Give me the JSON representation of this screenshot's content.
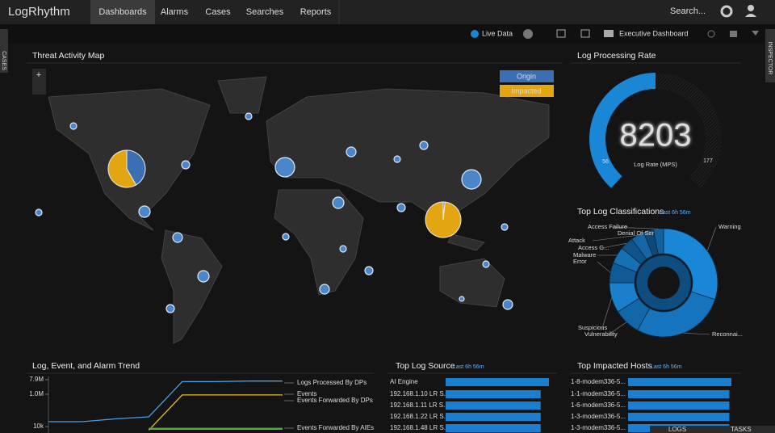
{
  "nav": {
    "brand": "LogRhythm",
    "tabs": [
      "Dashboards",
      "Alarms",
      "Cases",
      "Searches",
      "Reports"
    ],
    "search": "Search..."
  },
  "toolbar": {
    "live": "Live Data",
    "dashboard": "Executive Dashboard"
  },
  "sidebars": {
    "left": "CASES",
    "right": "INSPECTOR"
  },
  "threat_map": {
    "title": "Threat Activity Map",
    "zoom": "+",
    "legend": [
      "Origin",
      "Impacted"
    ]
  },
  "log_rate": {
    "title": "Log Processing Rate",
    "value": "8203",
    "min_label": "56",
    "max_label": "177",
    "caption": "Log Rate (MPS)"
  },
  "footer": {
    "logs": "LOGS",
    "tasks": "TASKS"
  },
  "chart_data": [
    {
      "type": "pie",
      "title": "Top Log Classifications",
      "subtitle": "Last 6h 56m",
      "categories": [
        "Warning",
        "Reconnai...",
        "Vulnerability",
        "Suspicious",
        "Error",
        "Malware",
        "Access G...",
        "Attack",
        "Denial Of Servi...",
        "Access Failure"
      ],
      "values": [
        30,
        28,
        8,
        9,
        6,
        5,
        4,
        4,
        3,
        3
      ],
      "colors": [
        "#1a86d6",
        "#1574bd",
        "#1267a8",
        "#1a7fcc",
        "#105b95",
        "#1670b4",
        "#0f5388",
        "#1466a6",
        "#0d4a7a",
        "#12609c"
      ]
    },
    {
      "type": "line",
      "title": "Log, Event, and Alarm Trend",
      "log_scale": true,
      "categories": [
        null,
        null,
        null,
        null,
        null,
        null,
        null,
        null
      ],
      "ylim": [
        4000,
        7900000
      ],
      "yticks": [
        {
          "value": 7900000,
          "label": "7.9M"
        },
        {
          "value": 1000000,
          "label": "1.0M"
        },
        {
          "value": 10000,
          "label": "10k"
        }
      ],
      "series": [
        {
          "name": "Logs Processed By DPs",
          "color": "#4a9fe0",
          "values": [
            20000,
            20000,
            30000,
            40000,
            6000000,
            6000000,
            6500000,
            6500000
          ]
        },
        {
          "name": "Events",
          "color": "#e8c21a",
          "values": [
            null,
            null,
            null,
            6000,
            900000,
            900000,
            900000,
            900000
          ]
        },
        {
          "name": "Events Forwarded By DPs",
          "color": "#7de04a",
          "values": [
            null,
            null,
            null,
            7000,
            7000,
            7000,
            7000,
            7000
          ]
        },
        {
          "name": "Events Forwarded By AIEs",
          "color": "#2f8a2f",
          "values": [
            null,
            null,
            null,
            8000,
            8000,
            8000,
            8000,
            8000
          ]
        }
      ]
    },
    {
      "type": "bar",
      "title": "Top Log Source",
      "subtitle": "Last 6h 56m",
      "color": "#1a7fd0",
      "xlim": [
        0,
        100
      ],
      "categories": [
        "AI Engine",
        "192.168.1.10 LR S...",
        "192.168.1.11 LR S...",
        "192.168.1.22 LR S...",
        "192.168.1.48 LR S..."
      ],
      "values": [
        100,
        92,
        92,
        92,
        92
      ]
    },
    {
      "type": "bar",
      "title": "Top Impacted Hosts",
      "subtitle": "Last 6h 56m",
      "color": "#1a7fd0",
      "xlim": [
        0,
        100
      ],
      "categories": [
        "1-8-modem336-5...",
        "1-1-modem336-5...",
        "1-6-modem336-5...",
        "1-3-modem336-5...",
        "1-3-modem336-5..."
      ],
      "values": [
        100,
        98,
        98,
        98,
        98
      ]
    }
  ]
}
